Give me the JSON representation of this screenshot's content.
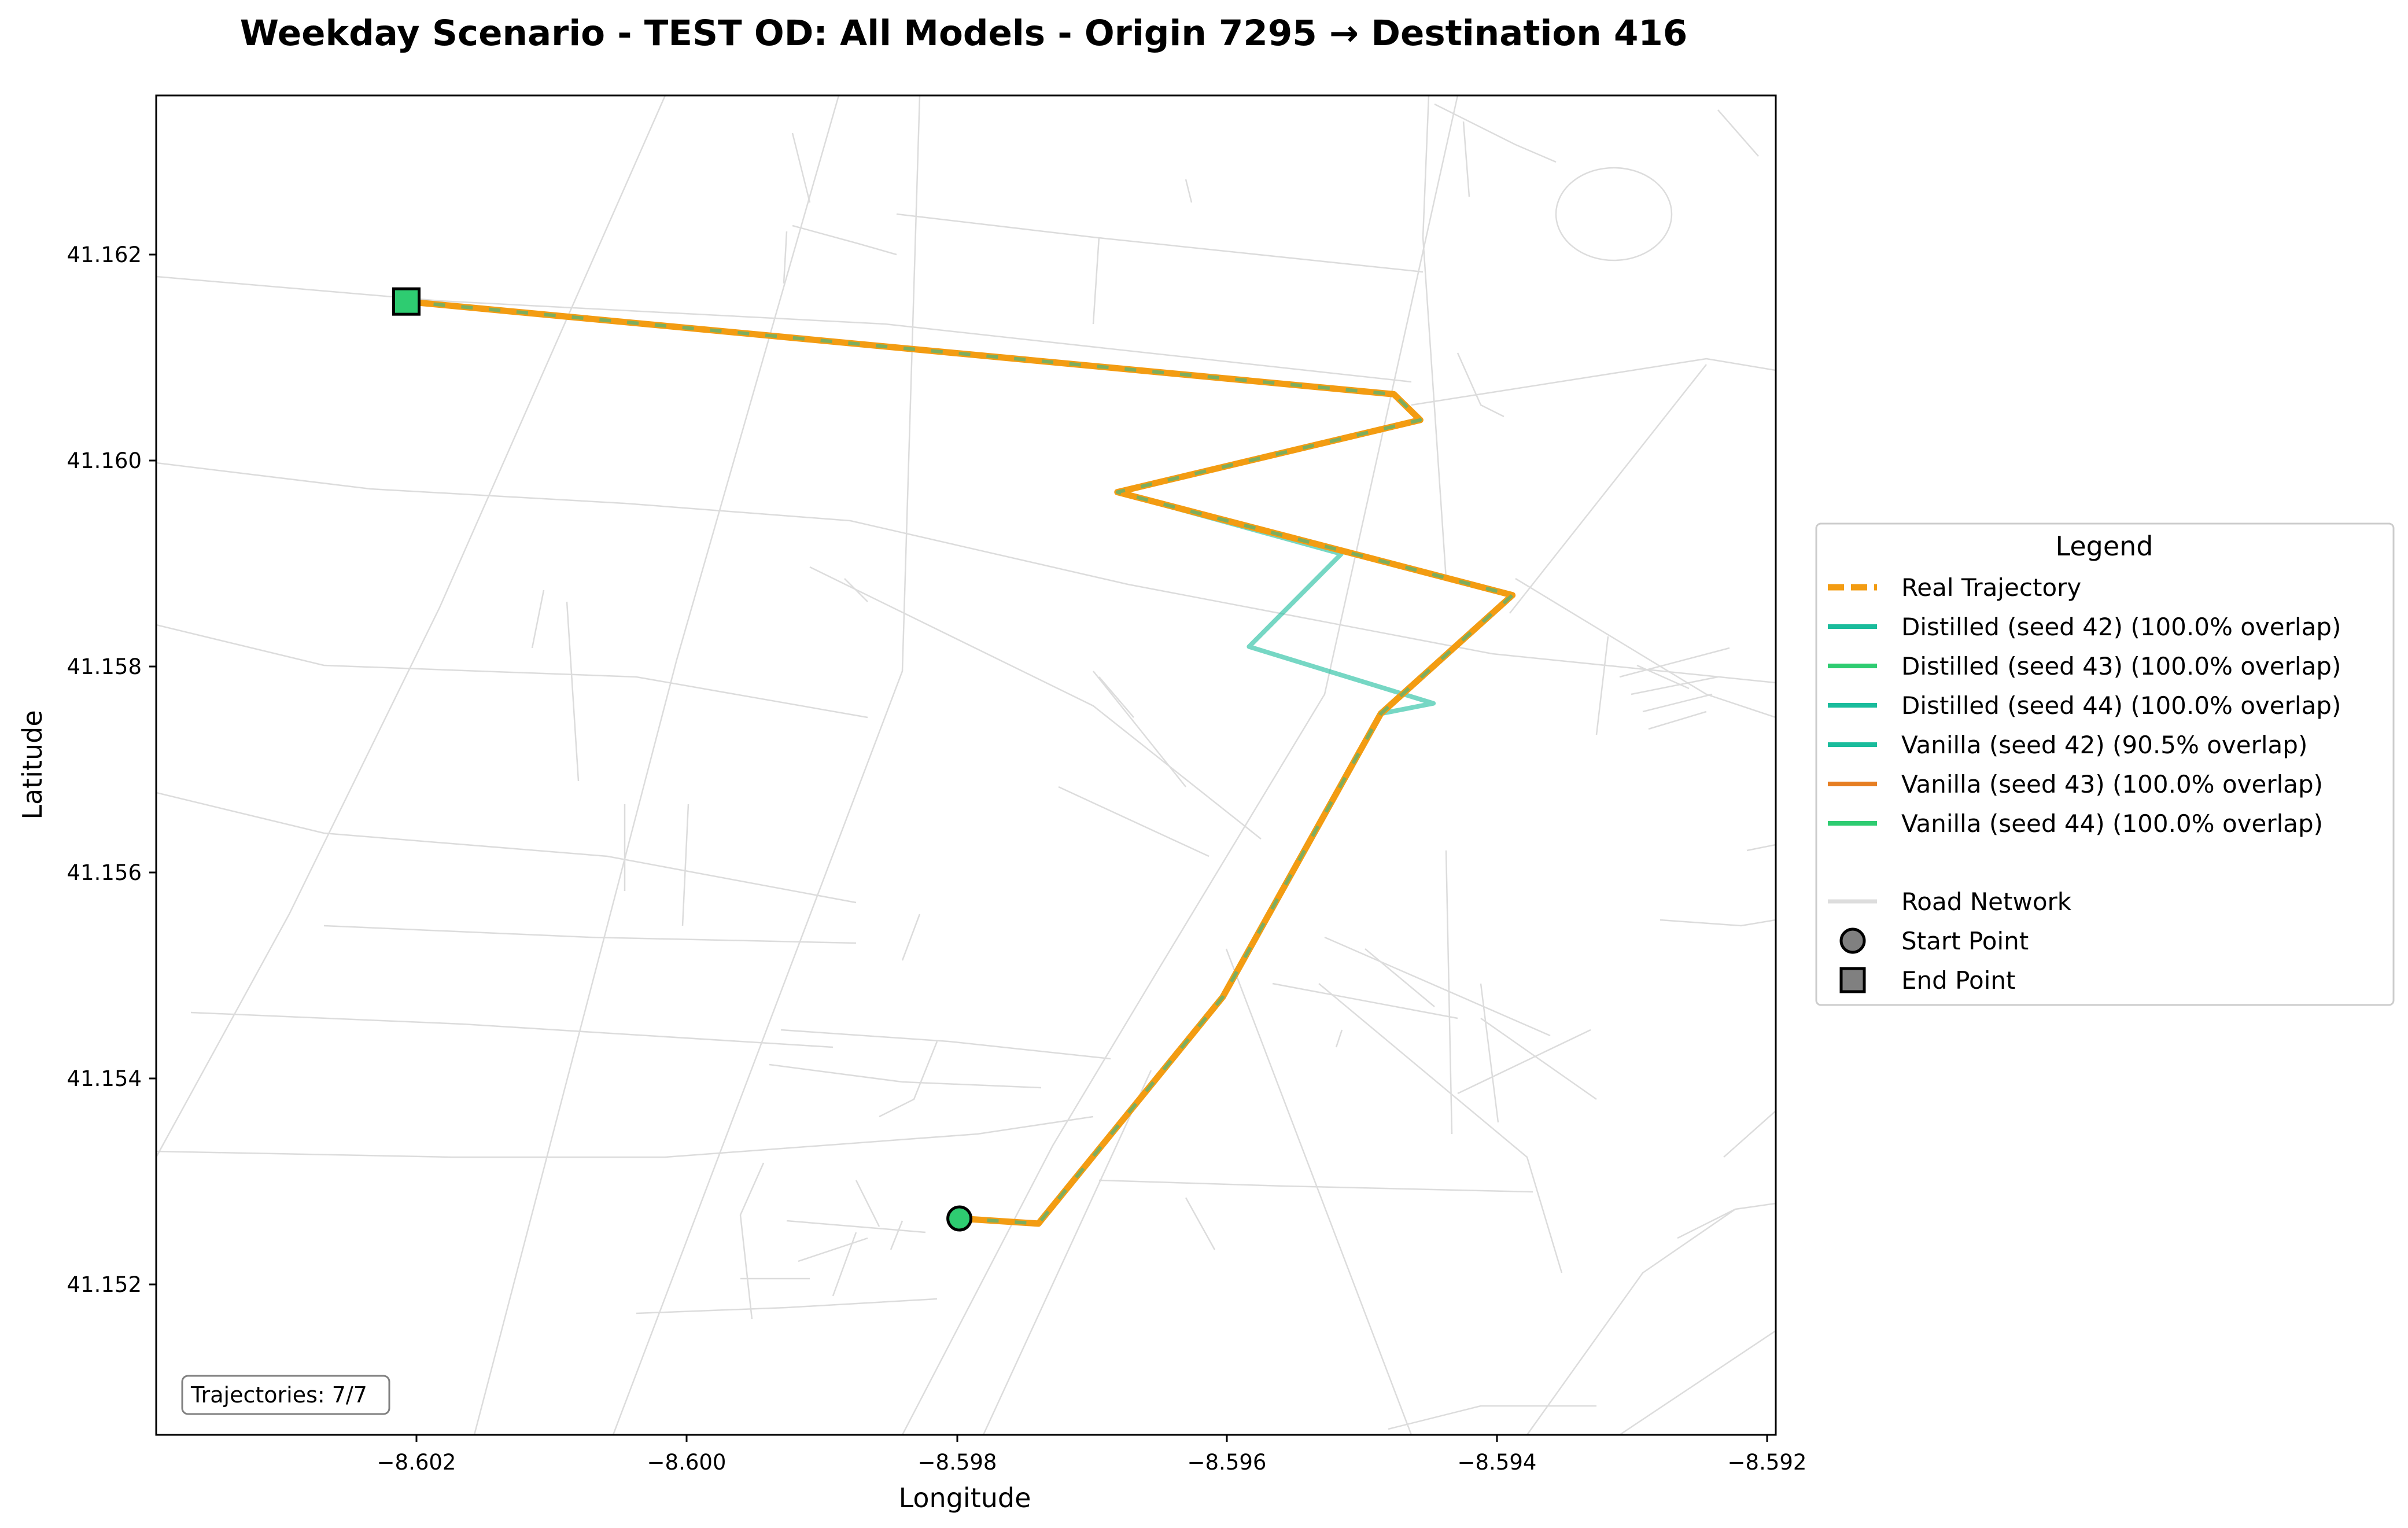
{
  "title": "Weekday Scenario - TEST OD: All Models - Origin 7295 → Destination 416",
  "axes": {
    "xlabel": "Longitude",
    "ylabel": "Latitude",
    "x_ticks": [
      "−8.602",
      "−8.600",
      "−8.598",
      "−8.596",
      "−8.594",
      "−8.592"
    ],
    "y_ticks": [
      "41.152",
      "41.154",
      "41.156",
      "41.158",
      "41.160",
      "41.162"
    ]
  },
  "counter": "Trajectories: 7/7",
  "legend": {
    "title": "Legend",
    "items": [
      {
        "label": "Real Trajectory",
        "color": "#f39c12",
        "style": "dashed-line"
      },
      {
        "label": "Distilled (seed 42) (100.0% overlap)",
        "color": "#1abc9c",
        "style": "line"
      },
      {
        "label": "Distilled (seed 43) (100.0% overlap)",
        "color": "#2ecc71",
        "style": "line"
      },
      {
        "label": "Distilled (seed 44) (100.0% overlap)",
        "color": "#1abc9c",
        "style": "line"
      },
      {
        "label": "Vanilla (seed 42) (90.5% overlap)",
        "color": "#1abc9c",
        "style": "line"
      },
      {
        "label": "Vanilla (seed 43) (100.0% overlap)",
        "color": "#e67e22",
        "style": "line"
      },
      {
        "label": "Vanilla (seed 44) (100.0% overlap)",
        "color": "#2ecc71",
        "style": "line"
      },
      {
        "label": "Road Network",
        "color": "#dddddd",
        "style": "line"
      },
      {
        "label": "Start Point",
        "color": "#808080",
        "style": "circle-marker"
      },
      {
        "label": "End Point",
        "color": "#808080",
        "style": "square-marker"
      }
    ]
  },
  "chart_data": {
    "type": "map",
    "xlim": [
      -8.6036,
      -8.5913
    ],
    "ylim": [
      41.1505,
      41.1635
    ],
    "origin": {
      "lon": -8.5975,
      "lat": 41.1526,
      "color": "#2ecc71"
    },
    "destination": {
      "lon": -8.6017,
      "lat": 41.1615,
      "color": "#2ecc71"
    },
    "real_trajectory": {
      "color": "#f39c12",
      "points": [
        [
          -8.5975,
          41.1526
        ],
        [
          -8.5969,
          41.15255
        ],
        [
          -8.5955,
          41.15475
        ],
        [
          -8.5943,
          41.1575
        ],
        [
          -8.5933,
          41.15865
        ],
        [
          -8.5963,
          41.15965
        ],
        [
          -8.594,
          41.16035
        ],
        [
          -8.5942,
          41.1606
        ],
        [
          -8.6017,
          41.1615
        ]
      ]
    },
    "vanilla_seed42_trajectory": {
      "color": "#1abc9c",
      "points": [
        [
          -8.5975,
          41.1526
        ],
        [
          -8.5969,
          41.15255
        ],
        [
          -8.5955,
          41.15475
        ],
        [
          -8.5943,
          41.1575
        ],
        [
          -8.5939,
          41.1576
        ],
        [
          -8.5953,
          41.15815
        ],
        [
          -8.5946,
          41.15905
        ],
        [
          -8.5963,
          41.15965
        ],
        [
          -8.594,
          41.16035
        ],
        [
          -8.5942,
          41.1606
        ],
        [
          -8.6017,
          41.1615
        ]
      ]
    }
  }
}
